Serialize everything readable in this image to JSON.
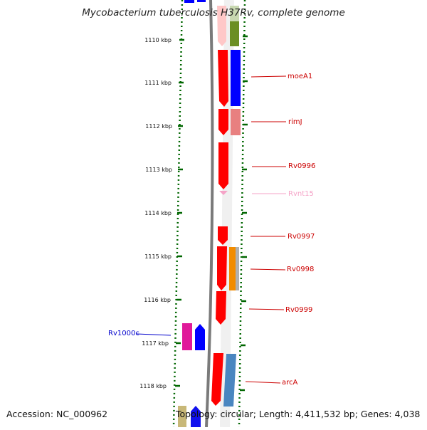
{
  "title": "Mycobacterium tuberculosis H37Rv, complete genome",
  "footer": {
    "accession": "Accession: NC_000962",
    "topology": "Topology: circular; Length: 4,411,532 bp; Genes: 4,038"
  },
  "scale": {
    "ticks": [
      "1110 kbp",
      "1111 kbp",
      "1112 kbp",
      "1113 kbp",
      "1114 kbp",
      "1115 kbp",
      "1116 kbp",
      "1117 kbp",
      "1118 kbp"
    ]
  },
  "genes": {
    "moeA1": "moeA1",
    "rimJ": "rimJ",
    "Rv0996": "Rv0996",
    "Rvnt15": "Rvnt15",
    "Rv0997": "Rv0997",
    "Rv0998": "Rv0998",
    "Rv0999": "Rv0999",
    "Rv1000c": "Rv1000c",
    "arcA": "arcA"
  },
  "colors": {
    "cds": "#ff0000",
    "trna": "#f5a3c7",
    "forward_label": "#cc0000",
    "reverse_label": "#0000cc",
    "scale_green": "#006600",
    "backbone": "#808080",
    "track_blue": "#0000ff",
    "track_olive": "#6b8e23",
    "track_salmon": "#e88080",
    "track_orange": "#f28c00",
    "track_steel": "#4a86c0",
    "track_magenta": "#e0199a"
  }
}
